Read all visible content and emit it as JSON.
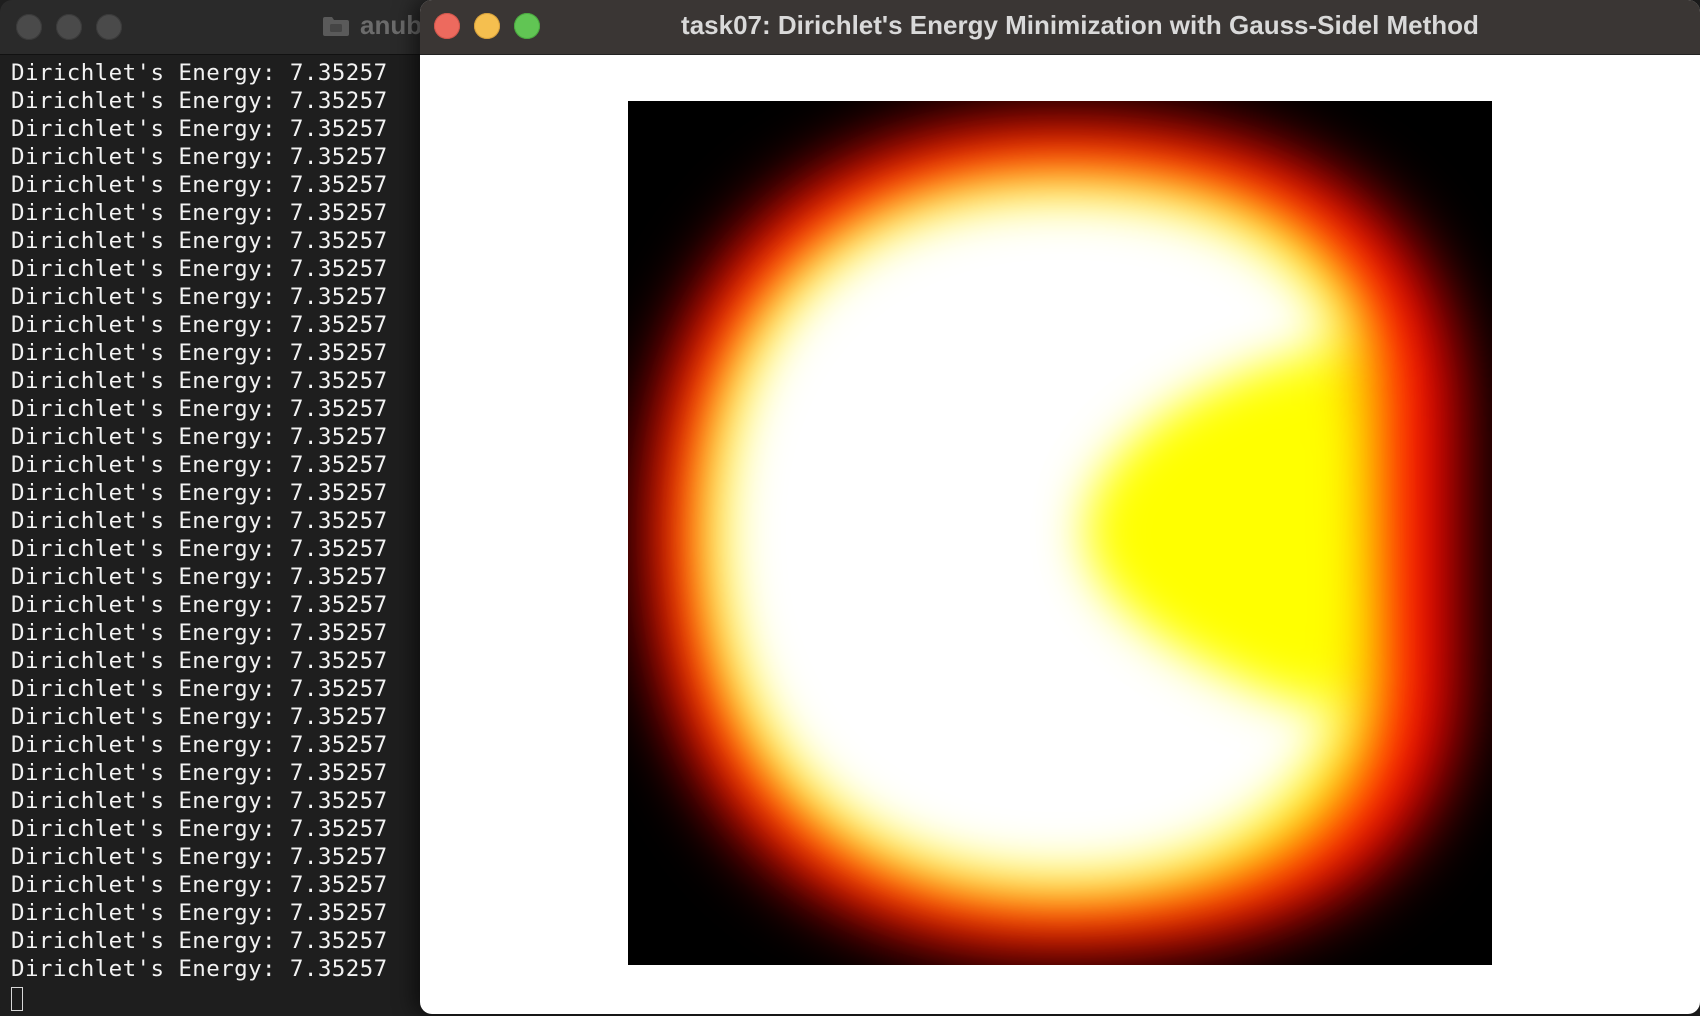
{
  "terminal": {
    "title": "anub",
    "lines": [
      "Dirichlet's Energy: 7.35257",
      "Dirichlet's Energy: 7.35257",
      "Dirichlet's Energy: 7.35257",
      "Dirichlet's Energy: 7.35257",
      "Dirichlet's Energy: 7.35257",
      "Dirichlet's Energy: 7.35257",
      "Dirichlet's Energy: 7.35257",
      "Dirichlet's Energy: 7.35257",
      "Dirichlet's Energy: 7.35257",
      "Dirichlet's Energy: 7.35257",
      "Dirichlet's Energy: 7.35257",
      "Dirichlet's Energy: 7.35257",
      "Dirichlet's Energy: 7.35257",
      "Dirichlet's Energy: 7.35257",
      "Dirichlet's Energy: 7.35257",
      "Dirichlet's Energy: 7.35257",
      "Dirichlet's Energy: 7.35257",
      "Dirichlet's Energy: 7.35257",
      "Dirichlet's Energy: 7.35257",
      "Dirichlet's Energy: 7.35257",
      "Dirichlet's Energy: 7.35257",
      "Dirichlet's Energy: 7.35257",
      "Dirichlet's Energy: 7.35257",
      "Dirichlet's Energy: 7.35257",
      "Dirichlet's Energy: 7.35257",
      "Dirichlet's Energy: 7.35257",
      "Dirichlet's Energy: 7.35257",
      "Dirichlet's Energy: 7.35257",
      "Dirichlet's Energy: 7.35257",
      "Dirichlet's Energy: 7.35257",
      "Dirichlet's Energy: 7.35257",
      "Dirichlet's Energy: 7.35257",
      "Dirichlet's Energy: 7.35257"
    ]
  },
  "app": {
    "title": "task07: Dirichlet's Energy Minimization with Gauss-Sidel Method"
  },
  "colors": {
    "heatmap_hot": "#ffffff",
    "heatmap_warm": "#ffff00",
    "heatmap_mid": "#ff0000",
    "heatmap_cold": "#000000"
  },
  "icons": {
    "terminal_folder": "folder-icon"
  }
}
